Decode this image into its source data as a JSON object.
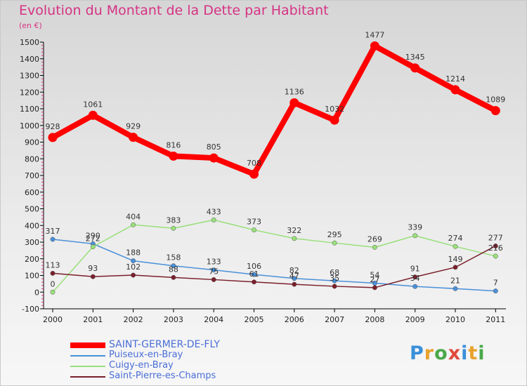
{
  "title": "Evolution du Montant de la Dette par Habitant",
  "unit": "(en €)",
  "chart_data": {
    "type": "line",
    "title": "Evolution du Montant de la Dette par Habitant",
    "subtitle": "(en €)",
    "x": [
      "2000",
      "2001",
      "2002",
      "2003",
      "2004",
      "2005",
      "2006",
      "2007",
      "2008",
      "2009",
      "2010",
      "2011"
    ],
    "ylim": [
      -100,
      1500
    ],
    "yticks": [
      -100,
      0,
      100,
      200,
      300,
      400,
      500,
      600,
      700,
      800,
      900,
      1000,
      1100,
      1200,
      1300,
      1400,
      1500
    ],
    "grid": false,
    "legend_position": "bottom-left",
    "series": [
      {
        "name": "SAINT-GERMER-DE-FLY",
        "color": "#ff0000",
        "emphasis": true,
        "values": [
          928,
          1061,
          929,
          816,
          805,
          708,
          1136,
          1032,
          1477,
          1345,
          1214,
          1089
        ],
        "labels": [
          "928",
          "1061",
          "929",
          "816",
          "805",
          "708",
          "1136",
          "1032",
          "1477",
          "1345",
          "1214",
          "1089"
        ]
      },
      {
        "name": "Puiseux-en-Bray",
        "color": "#4a90d9",
        "values": [
          317,
          290,
          188,
          158,
          133,
          106,
          82,
          68,
          54,
          34,
          21,
          7
        ],
        "labels": [
          "317",
          "290",
          "188",
          "158",
          "133",
          "106",
          "82",
          "68",
          "54",
          "34",
          "21",
          "7"
        ]
      },
      {
        "name": "Cuigy-en-Bray",
        "color": "#99e07a",
        "values": [
          0,
          272,
          404,
          383,
          433,
          373,
          322,
          295,
          269,
          339,
          274,
          216
        ],
        "labels": [
          "0",
          "272",
          "404",
          "383",
          "433",
          "373",
          "322",
          "295",
          "269",
          "339",
          "274",
          "216"
        ]
      },
      {
        "name": "Saint-Pierre-es-Champs",
        "color": "#7a1f2b",
        "values": [
          113,
          93,
          102,
          88,
          75,
          61,
          47,
          35,
          27,
          91,
          149,
          277
        ],
        "labels": [
          "113",
          "93",
          "102",
          "88",
          "75",
          "61",
          "47",
          "35",
          "27",
          "91",
          "149",
          "277"
        ]
      }
    ]
  },
  "logo": {
    "letters": [
      {
        "ch": "P",
        "color": "#3a8fd9"
      },
      {
        "ch": "r",
        "color": "#e8a22c"
      },
      {
        "ch": "o",
        "color": "#4aa84a"
      },
      {
        "ch": "x",
        "color": "#e04a3a"
      },
      {
        "ch": "i",
        "color": "#3a8fd9"
      },
      {
        "ch": "t",
        "color": "#e8a22c"
      },
      {
        "ch": "i",
        "color": "#4aa84a"
      }
    ]
  }
}
